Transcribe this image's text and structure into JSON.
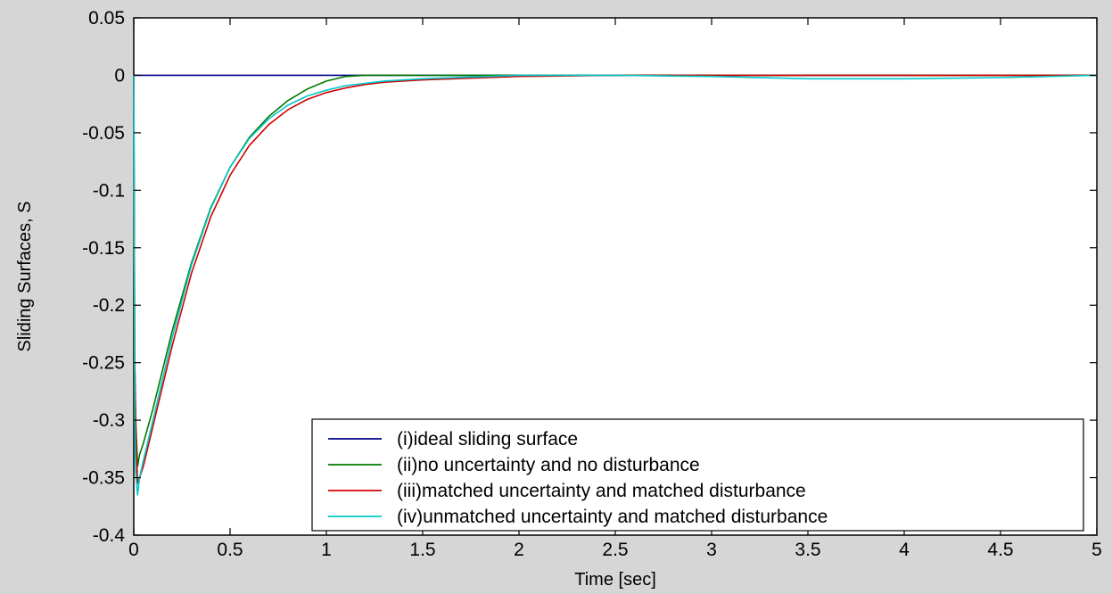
{
  "chart_data": {
    "type": "line",
    "title": "",
    "xlabel": "Time [sec]",
    "ylabel": "Sliding Surfaces, S",
    "xlim": [
      0,
      5
    ],
    "ylim": [
      -0.4,
      0.05
    ],
    "xticks": [
      0,
      0.5,
      1,
      1.5,
      2,
      2.5,
      3,
      3.5,
      4,
      4.5,
      5
    ],
    "xtick_labels": [
      "0",
      "0.5",
      "1",
      "1.5",
      "2",
      "2.5",
      "3",
      "3.5",
      "4",
      "4.5",
      "5"
    ],
    "yticks": [
      0.05,
      0,
      -0.05,
      -0.1,
      -0.15,
      -0.2,
      -0.25,
      -0.3,
      -0.35,
      -0.4
    ],
    "ytick_labels": [
      "0.05",
      "0",
      "-0.05",
      "-0.1",
      "-0.15",
      "-0.2",
      "-0.25",
      "-0.3",
      "-0.35",
      "-0.4"
    ],
    "grid": false,
    "legend_position": "bottom-right",
    "background": "#ffffff",
    "figure_background": "#d6d6d6",
    "series": [
      {
        "name": "(i)ideal sliding surface",
        "color": "#00008b",
        "x": [
          0,
          5
        ],
        "y": [
          0,
          0
        ]
      },
      {
        "name": "(ii)no uncertainty and no disturbance",
        "color": "#007a00",
        "x": [
          0,
          0.005,
          0.01,
          0.02,
          0.03,
          0.05,
          0.1,
          0.2,
          0.3,
          0.4,
          0.5,
          0.6,
          0.7,
          0.8,
          0.9,
          1.0,
          1.1,
          1.2,
          1.3,
          1.5,
          2.0,
          2.5,
          3.0,
          4.0,
          5.0
        ],
        "y": [
          0,
          -0.245,
          -0.3,
          -0.34,
          -0.33,
          -0.32,
          -0.29,
          -0.222,
          -0.163,
          -0.115,
          -0.08,
          -0.054,
          -0.036,
          -0.022,
          -0.012,
          -0.005,
          -0.001,
          0,
          0,
          0,
          0,
          0,
          0,
          0,
          0
        ]
      },
      {
        "name": "(iii)matched uncertainty and matched disturbance",
        "color": "#d40000",
        "x": [
          0,
          0.005,
          0.01,
          0.02,
          0.03,
          0.05,
          0.1,
          0.2,
          0.3,
          0.4,
          0.5,
          0.6,
          0.7,
          0.8,
          0.9,
          1.0,
          1.1,
          1.2,
          1.3,
          1.5,
          2.0,
          2.5,
          3.0,
          4.0,
          5.0
        ],
        "y": [
          0,
          -0.25,
          -0.31,
          -0.355,
          -0.35,
          -0.34,
          -0.305,
          -0.235,
          -0.172,
          -0.123,
          -0.087,
          -0.061,
          -0.043,
          -0.03,
          -0.021,
          -0.015,
          -0.011,
          -0.008,
          -0.006,
          -0.004,
          -0.001,
          0,
          0,
          0,
          0
        ]
      },
      {
        "name": "(iv)unmatched uncertainty and matched disturbance",
        "color": "#00c8c8",
        "x": [
          0,
          0.005,
          0.01,
          0.02,
          0.03,
          0.05,
          0.1,
          0.2,
          0.3,
          0.4,
          0.5,
          0.6,
          0.7,
          0.8,
          0.9,
          1.0,
          1.1,
          1.2,
          1.3,
          1.5,
          2.0,
          2.5,
          3.0,
          3.5,
          4.0,
          4.5,
          5.0
        ],
        "y": [
          0,
          -0.3,
          -0.345,
          -0.365,
          -0.35,
          -0.335,
          -0.3,
          -0.228,
          -0.165,
          -0.116,
          -0.08,
          -0.055,
          -0.038,
          -0.026,
          -0.018,
          -0.013,
          -0.009,
          -0.007,
          -0.005,
          -0.003,
          0,
          0,
          -0.001,
          -0.003,
          -0.003,
          -0.002,
          0
        ]
      }
    ]
  }
}
